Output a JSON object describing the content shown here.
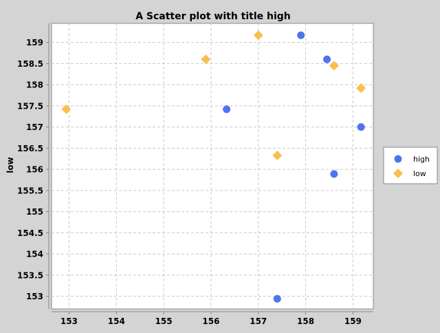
{
  "chart_data": {
    "type": "scatter",
    "title": "A Scatter plot with title high",
    "xlabel": "",
    "ylabel": "low",
    "xlim": [
      152.63,
      159.43
    ],
    "ylim": [
      152.7,
      159.45
    ],
    "x_ticks": [
      153,
      154,
      155,
      156,
      157,
      158,
      159
    ],
    "y_ticks": [
      153,
      153.5,
      154,
      154.5,
      155,
      155.5,
      156,
      156.5,
      157,
      157.5,
      158,
      158.5,
      159
    ],
    "x_tick_labels": [
      "153",
      "154",
      "155",
      "156",
      "157",
      "158",
      "159"
    ],
    "y_tick_labels": [
      "153",
      "153.5",
      "154",
      "154.5",
      "155",
      "155.5",
      "156",
      "156.5",
      "157",
      "157.5",
      "158",
      "158.5",
      "159"
    ],
    "grid": true,
    "legend_position": "right",
    "series": [
      {
        "name": "high",
        "marker": "circle",
        "color": "#4f74f2",
        "points": [
          {
            "x": 157.9,
            "y": 159.17
          },
          {
            "x": 158.45,
            "y": 158.6
          },
          {
            "x": 156.33,
            "y": 157.42
          },
          {
            "x": 159.17,
            "y": 157.0
          },
          {
            "x": 158.6,
            "y": 155.89
          },
          {
            "x": 157.4,
            "y": 152.94
          }
        ]
      },
      {
        "name": "low",
        "marker": "diamond",
        "color": "#f8c04e",
        "points": [
          {
            "x": 157.0,
            "y": 159.17
          },
          {
            "x": 155.89,
            "y": 158.6
          },
          {
            "x": 158.6,
            "y": 158.45
          },
          {
            "x": 159.17,
            "y": 157.92
          },
          {
            "x": 152.94,
            "y": 157.42
          },
          {
            "x": 157.4,
            "y": 156.33
          }
        ]
      }
    ]
  },
  "colors": {
    "page_background": "#d4d4d4",
    "plot_background": "#ffffff",
    "gridline": "#c8c8c8",
    "axis": "#888888"
  }
}
